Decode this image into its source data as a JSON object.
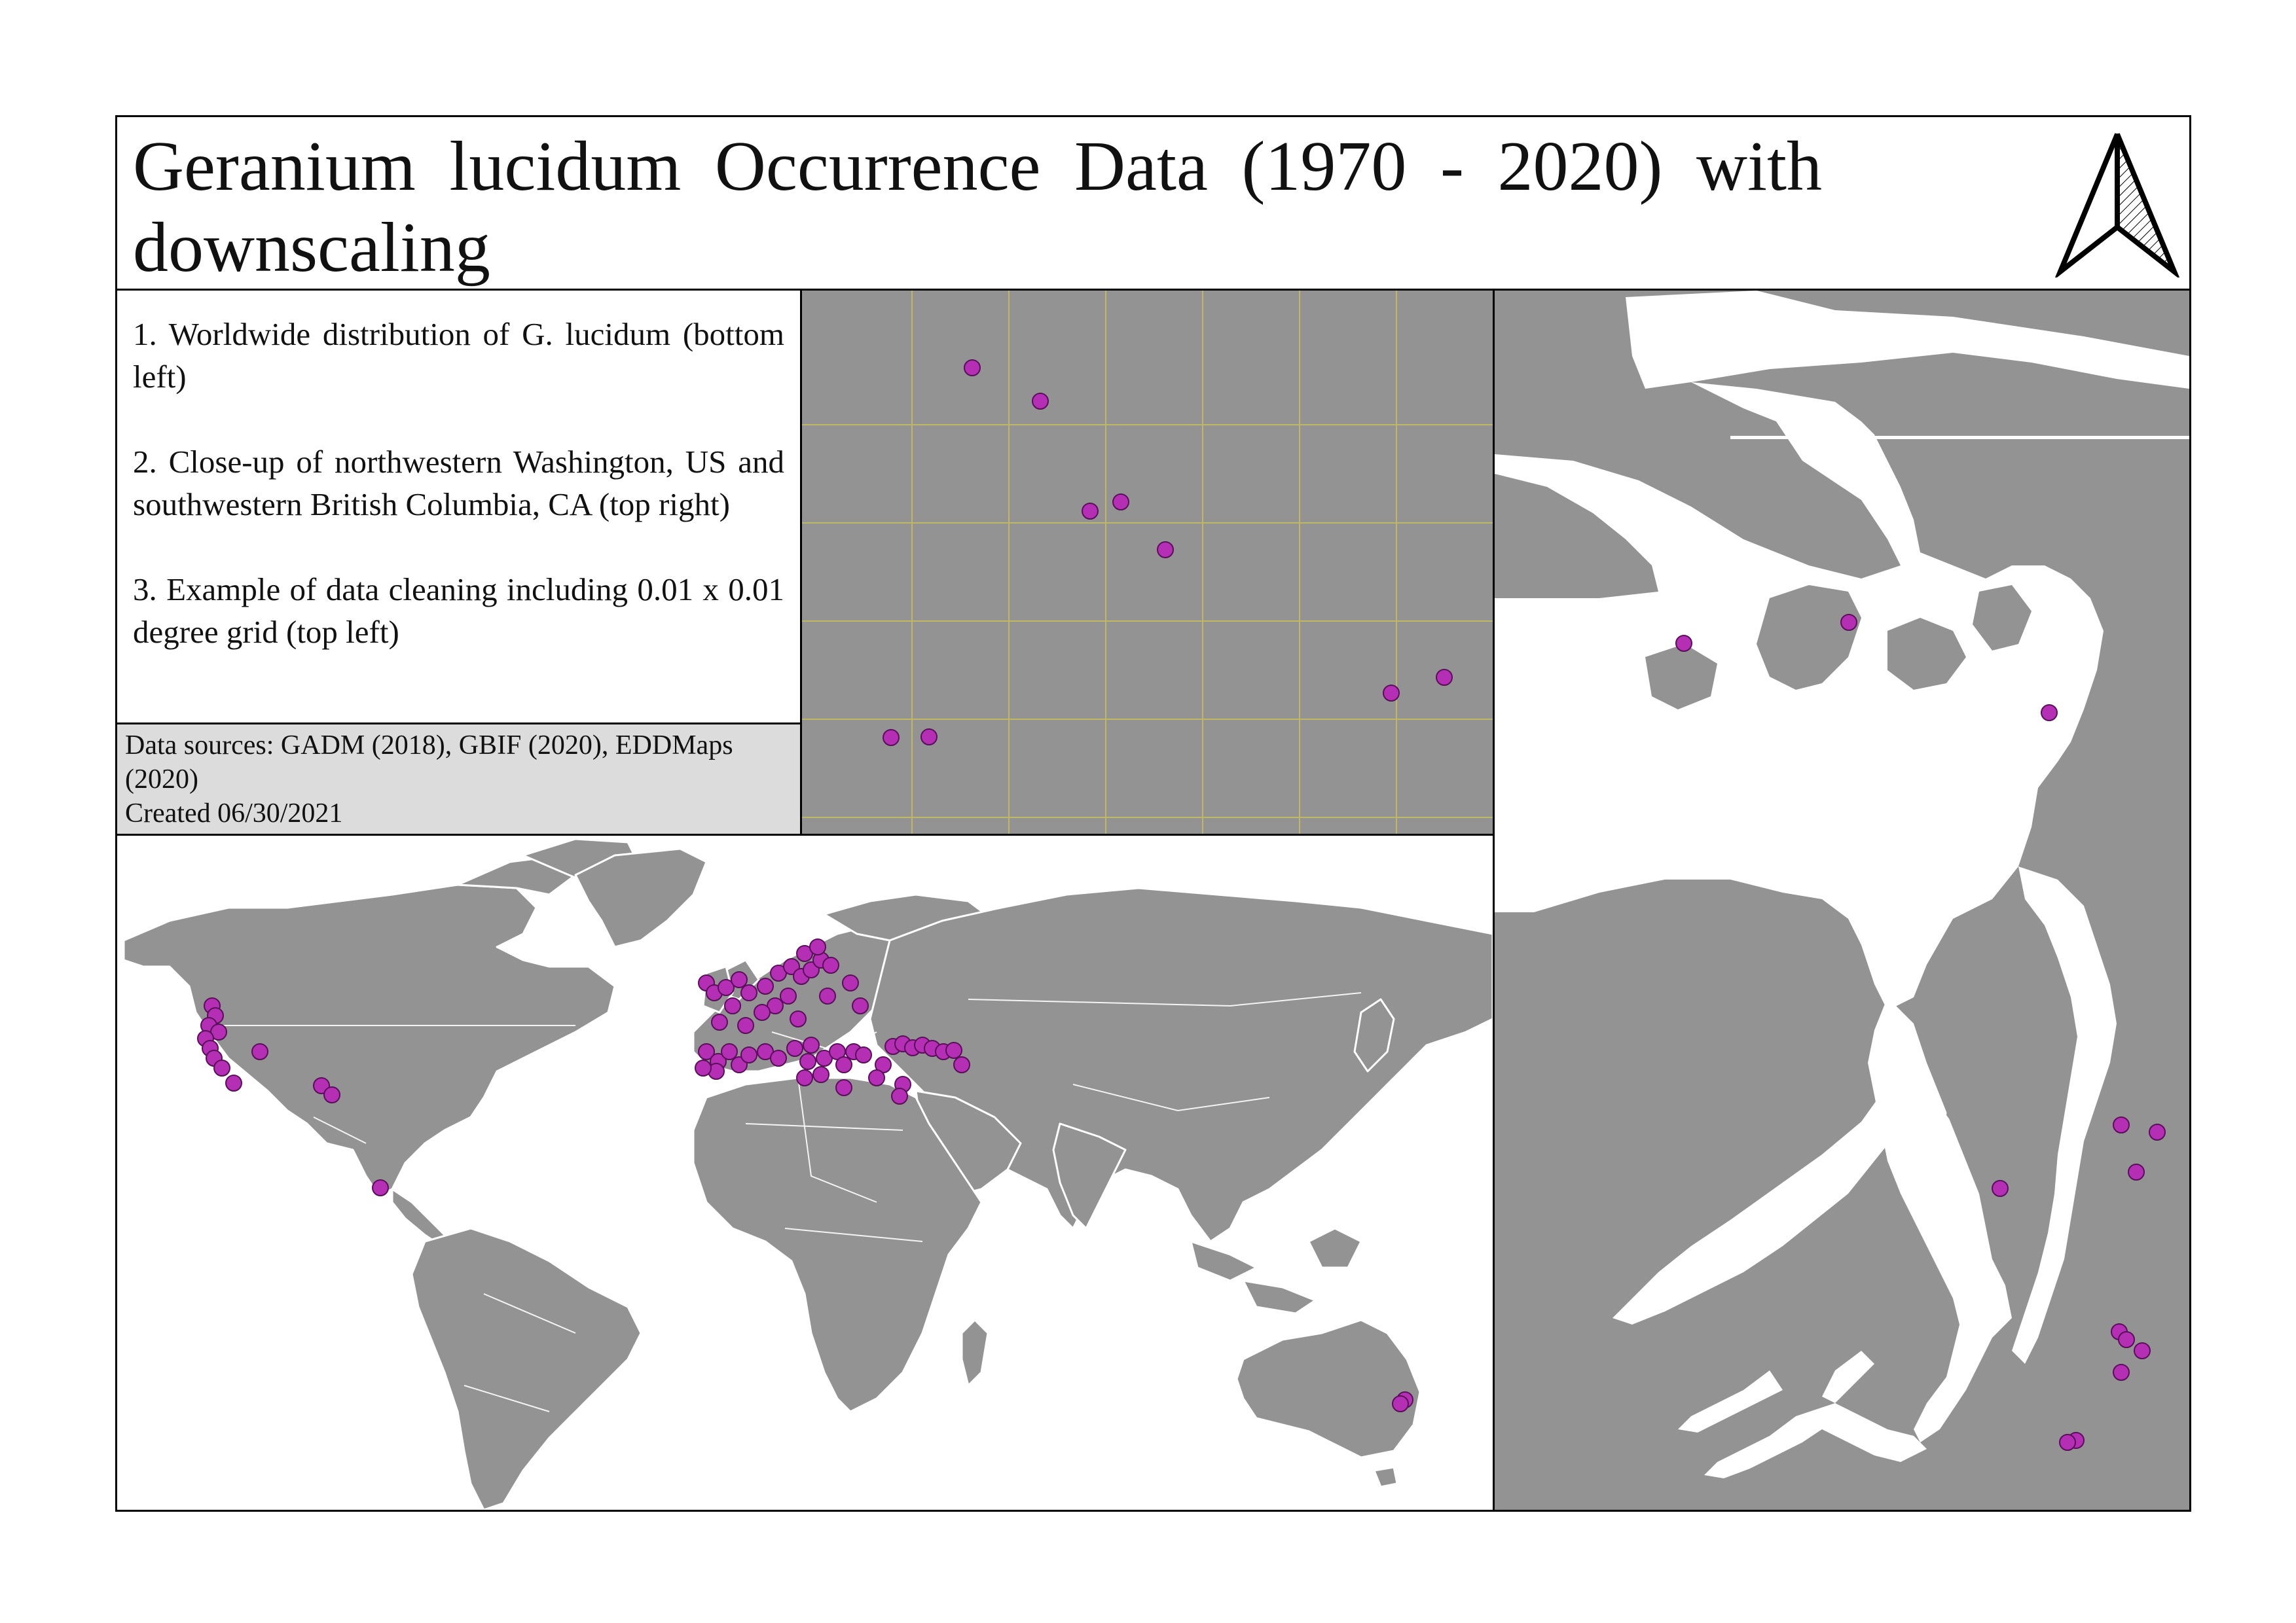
{
  "title": "Geranium lucidum Occurrence Data (1970 - 2020) with downscaling",
  "description": [
    "1. Worldwide distribution of G. lucidum (bottom left)",
    "2. Close-up of northwestern Washington, US and southwestern British Columbia, CA (top right)",
    "3. Example of data cleaning including 0.01 x 0.01 degree  grid (top left)"
  ],
  "sources": {
    "line1": "Data sources: GADM (2018), GBIF (2020), EDDMaps (2020)",
    "line2": "Created 06/30/2021"
  },
  "icons": {
    "north_arrow": "north-arrow-icon"
  },
  "colors": {
    "land": "#939393",
    "water": "#ffffff",
    "occurrence_point": "#b52fb5",
    "occurrence_outline": "#5a0f5a",
    "grid_line": "#c9c25a"
  },
  "map_layers": {
    "world": "Worldwide distribution of G. lucidum",
    "pnw": "Close-up of northwestern Washington and southwestern British Columbia",
    "grid": "0.01 x 0.01 degree grid"
  }
}
